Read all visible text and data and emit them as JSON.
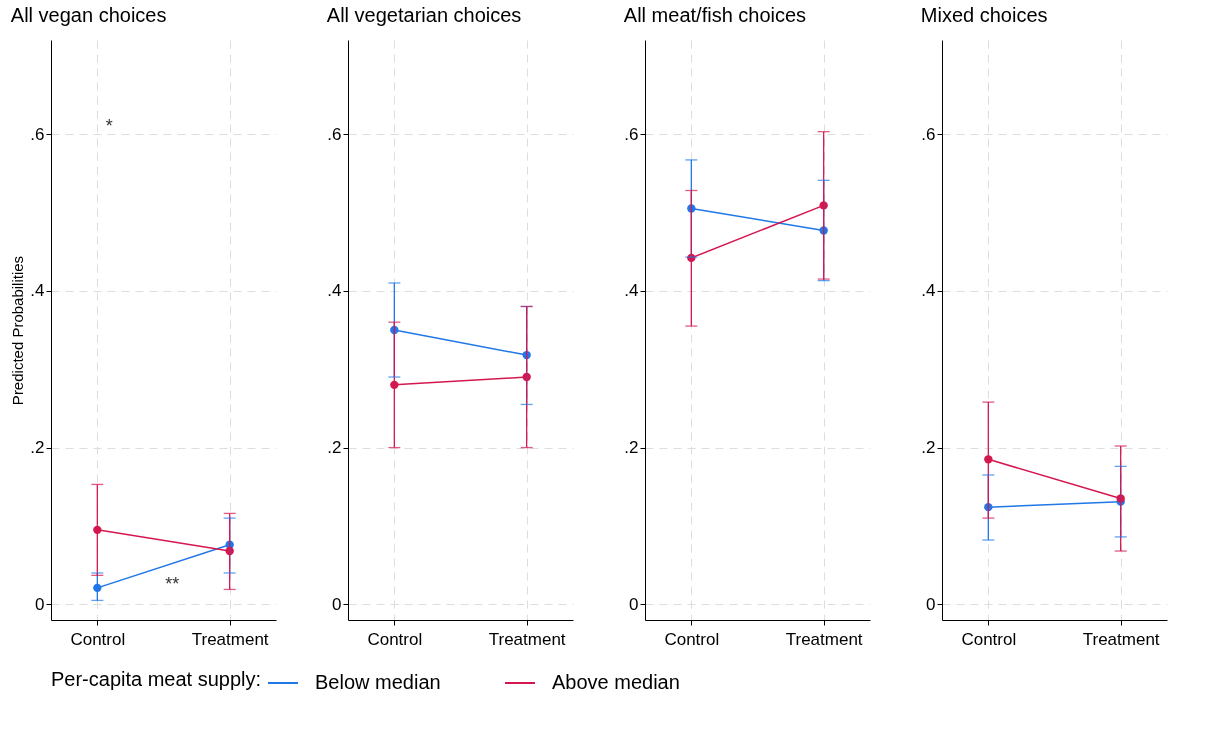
{
  "chart_data": [
    {
      "type": "line",
      "title": "All vegan choices",
      "ylabel": "Predicted Probabilities",
      "categories": [
        "Control",
        "Treatment"
      ],
      "ylim": [
        -0.02,
        0.72
      ],
      "yticks": [
        {
          "value": 0,
          "label": "0"
        },
        {
          "value": 0.2,
          "label": ".2"
        },
        {
          "value": 0.4,
          "label": ".4"
        },
        {
          "value": 0.6,
          "label": ".6"
        }
      ],
      "grid": true,
      "marker": "circle",
      "legend": "bottom",
      "legend_title": "Per-capita meat supply:",
      "annotations": [
        "*",
        "**"
      ],
      "series": [
        {
          "name": "Below median",
          "color": "#1f77e8",
          "values": [
            0.021,
            0.076
          ],
          "errors": [
            [
              0.005,
              0.04
            ],
            [
              0.04,
              0.11
            ]
          ]
        },
        {
          "name": "Above median",
          "color": "#d4174f",
          "values": [
            0.095,
            0.068
          ],
          "errors": [
            [
              0.037,
              0.153
            ],
            [
              0.019,
              0.116
            ]
          ]
        }
      ]
    },
    {
      "type": "line",
      "title": "All vegetarian choices",
      "categories": [
        "Control",
        "Treatment"
      ],
      "ylim": [
        -0.02,
        0.72
      ],
      "yticks": [
        {
          "value": 0,
          "label": "0"
        },
        {
          "value": 0.2,
          "label": ".2"
        },
        {
          "value": 0.4,
          "label": ".4"
        },
        {
          "value": 0.6,
          "label": ".6"
        }
      ],
      "grid": true,
      "marker": "circle",
      "series": [
        {
          "name": "Below median",
          "color": "#1f77e8",
          "values": [
            0.35,
            0.318
          ],
          "errors": [
            [
              0.29,
              0.41
            ],
            [
              0.255,
              0.38
            ]
          ]
        },
        {
          "name": "Above median",
          "color": "#d4174f",
          "values": [
            0.28,
            0.29
          ],
          "errors": [
            [
              0.2,
              0.36
            ],
            [
              0.2,
              0.38
            ]
          ]
        }
      ]
    },
    {
      "type": "line",
      "title": "All meat/fish choices",
      "categories": [
        "Control",
        "Treatment"
      ],
      "ylim": [
        -0.02,
        0.72
      ],
      "yticks": [
        {
          "value": 0,
          "label": "0"
        },
        {
          "value": 0.2,
          "label": ".2"
        },
        {
          "value": 0.4,
          "label": ".4"
        },
        {
          "value": 0.6,
          "label": ".6"
        }
      ],
      "grid": true,
      "marker": "circle",
      "series": [
        {
          "name": "Below median",
          "color": "#1f77e8",
          "values": [
            0.505,
            0.477
          ],
          "errors": [
            [
              0.443,
              0.567
            ],
            [
              0.413,
              0.541
            ]
          ]
        },
        {
          "name": "Above median",
          "color": "#d4174f",
          "values": [
            0.442,
            0.509
          ],
          "errors": [
            [
              0.355,
              0.528
            ],
            [
              0.415,
              0.603
            ]
          ]
        }
      ]
    },
    {
      "type": "line",
      "title": "Mixed choices",
      "categories": [
        "Control",
        "Treatment"
      ],
      "ylim": [
        -0.02,
        0.72
      ],
      "yticks": [
        {
          "value": 0,
          "label": "0"
        },
        {
          "value": 0.2,
          "label": ".2"
        },
        {
          "value": 0.4,
          "label": ".4"
        },
        {
          "value": 0.6,
          "label": ".6"
        }
      ],
      "grid": true,
      "marker": "circle",
      "series": [
        {
          "name": "Below median",
          "color": "#1f77e8",
          "values": [
            0.124,
            0.131
          ],
          "errors": [
            [
              0.082,
              0.165
            ],
            [
              0.086,
              0.176
            ]
          ]
        },
        {
          "name": "Above median",
          "color": "#d4174f",
          "values": [
            0.185,
            0.135
          ],
          "errors": [
            [
              0.11,
              0.258
            ],
            [
              0.068,
              0.202
            ]
          ]
        }
      ]
    }
  ]
}
